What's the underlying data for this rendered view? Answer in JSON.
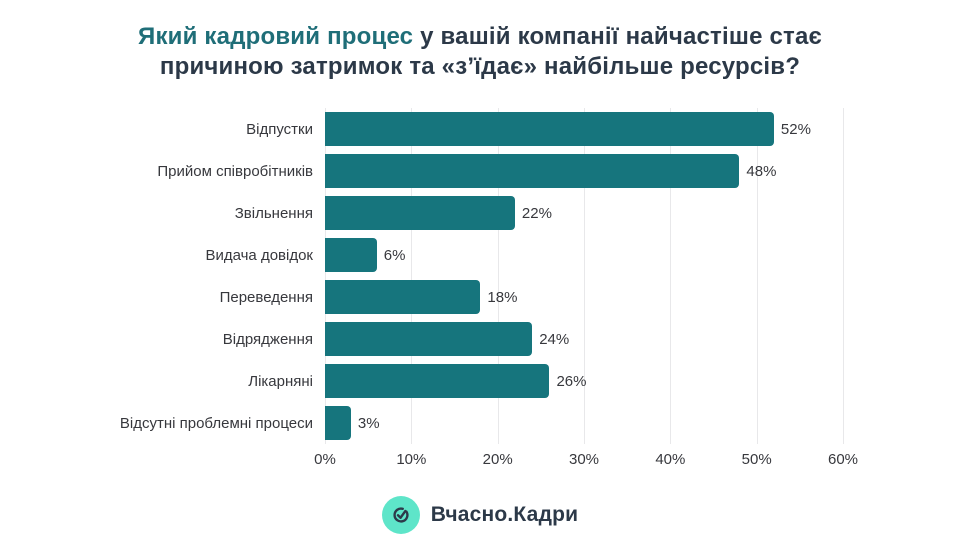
{
  "title": {
    "highlight": "Який кадровий процес",
    "rest_line1": " у вашій компанії найчастіше стає",
    "line2": "причиною затримок та «з’їдає» найбільше ресурсів?"
  },
  "chart_data": {
    "type": "bar",
    "orientation": "horizontal",
    "title": "Який кадровий процес у вашій компанії найчастіше стає причиною затримок та «з’їдає» найбільше ресурсів?",
    "categories": [
      "Відпустки",
      "Прийом співробітників",
      "Звільнення",
      "Видача довідок",
      "Переведення",
      "Відрядження",
      "Лікарняні",
      "Відсутні проблемні процеси"
    ],
    "values": [
      52,
      48,
      22,
      6,
      18,
      24,
      26,
      3
    ],
    "value_labels": [
      "52%",
      "48%",
      "22%",
      "6%",
      "18%",
      "24%",
      "26%",
      "3%"
    ],
    "x_ticks": [
      "0%",
      "10%",
      "20%",
      "30%",
      "40%",
      "50%",
      "60%"
    ],
    "xlim": [
      0,
      60
    ],
    "grid": true,
    "legend": "none",
    "bar_color": "#16757d",
    "gridline_color": "#e8e8ea"
  },
  "footer": {
    "logo_text": "Вчасно.Кадри",
    "logo_icon": "check-clock-icon",
    "logo_bg_color": "#5ee5c9",
    "logo_glyph_color": "#2d3a4a"
  },
  "colors": {
    "title_highlight": "#1f6e78",
    "title_main": "#2c3948",
    "label_text": "#37383d",
    "background": "#ffffff"
  }
}
